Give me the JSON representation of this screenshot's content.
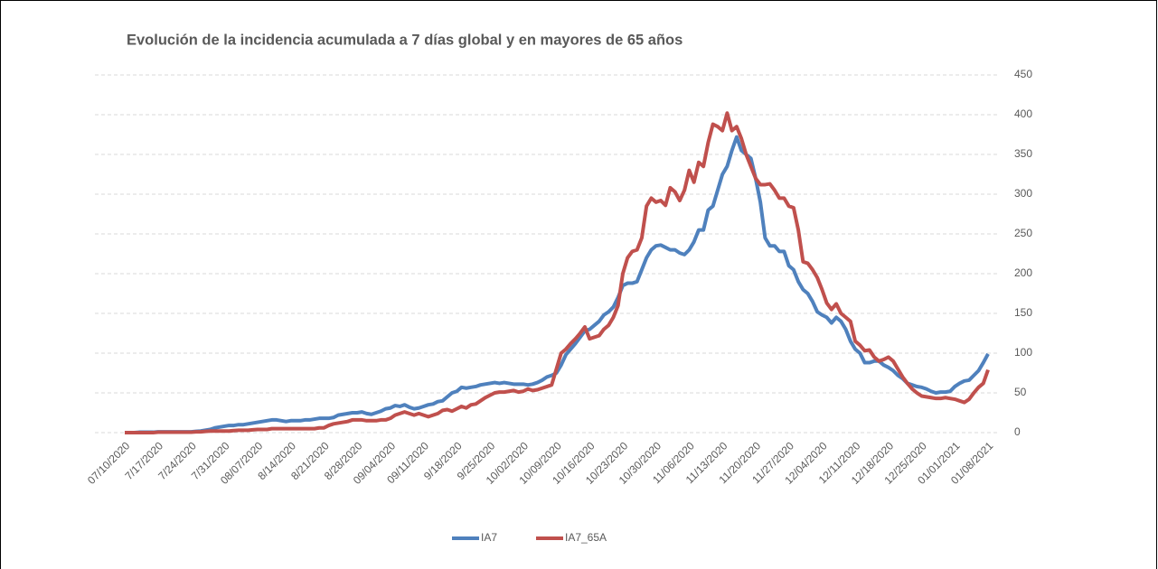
{
  "chart_data": {
    "type": "line",
    "title": "Evolución de la incidencia acumulada a 7 días global y en mayores de 65 años",
    "categories": [
      "07/10/2020",
      null,
      null,
      null,
      null,
      null,
      null,
      "7/17/2020",
      null,
      null,
      null,
      null,
      null,
      null,
      "7/24/2020",
      null,
      null,
      null,
      null,
      null,
      null,
      "7/31/2020",
      null,
      null,
      null,
      null,
      null,
      null,
      "08/07/2020",
      null,
      null,
      null,
      null,
      null,
      null,
      "8/14/2020",
      null,
      null,
      null,
      null,
      null,
      null,
      "8/21/2020",
      null,
      null,
      null,
      null,
      null,
      null,
      "8/28/2020",
      null,
      null,
      null,
      null,
      null,
      null,
      "09/04/2020",
      null,
      null,
      null,
      null,
      null,
      null,
      "09/11/2020",
      null,
      null,
      null,
      null,
      null,
      null,
      "9/18/2020",
      null,
      null,
      null,
      null,
      null,
      null,
      "9/25/2020",
      null,
      null,
      null,
      null,
      null,
      null,
      "10/02/2020",
      null,
      null,
      null,
      null,
      null,
      null,
      "10/09/2020",
      null,
      null,
      null,
      null,
      null,
      null,
      "10/16/2020",
      null,
      null,
      null,
      null,
      null,
      null,
      "10/23/2020",
      null,
      null,
      null,
      null,
      null,
      null,
      "10/30/2020",
      null,
      null,
      null,
      null,
      null,
      null,
      "11/06/2020",
      null,
      null,
      null,
      null,
      null,
      null,
      "11/13/2020",
      null,
      null,
      null,
      null,
      null,
      null,
      "11/20/2020",
      null,
      null,
      null,
      null,
      null,
      null,
      "11/27/2020",
      null,
      null,
      null,
      null,
      null,
      null,
      "12/04/2020",
      null,
      null,
      null,
      null,
      null,
      null,
      "12/11/2020",
      null,
      null,
      null,
      null,
      null,
      null,
      "12/18/2020",
      null,
      null,
      null,
      null,
      null,
      null,
      "12/25/2020",
      null,
      null,
      null,
      null,
      null,
      null,
      "01/01/2021",
      null,
      null,
      null,
      null,
      null,
      null,
      "01/08/2021"
    ],
    "series": [
      {
        "name": "IA7",
        "color": "#4F81BD",
        "values": [
          0,
          0,
          0,
          0.5,
          0.5,
          0.5,
          0.5,
          1,
          1,
          1,
          1,
          1,
          1,
          1,
          1,
          1.5,
          2,
          3,
          4,
          6,
          7,
          8,
          9,
          9,
          10,
          10,
          11,
          12,
          13,
          14,
          15,
          16,
          16,
          15,
          14,
          15,
          15,
          15,
          16,
          16,
          17,
          18,
          18,
          18,
          19,
          22,
          23,
          24,
          25,
          25,
          26,
          24,
          23,
          25,
          27,
          30,
          31,
          34,
          33,
          35,
          32,
          30,
          31,
          33,
          35,
          36,
          39,
          40,
          45,
          50,
          52,
          57,
          56,
          57,
          58,
          60,
          61,
          62,
          63,
          62,
          63,
          62,
          61,
          61,
          61,
          60,
          61,
          63,
          66,
          70,
          72,
          75,
          85,
          98,
          105,
          112,
          120,
          128,
          130,
          135,
          140,
          148,
          152,
          158,
          170,
          185,
          188,
          188,
          190,
          205,
          220,
          230,
          235,
          236,
          233,
          230,
          230,
          226,
          224,
          230,
          240,
          255,
          255,
          280,
          285,
          305,
          325,
          335,
          355,
          372,
          355,
          350,
          345,
          320,
          290,
          245,
          235,
          235,
          228,
          228,
          210,
          205,
          190,
          180,
          175,
          165,
          152,
          148,
          145,
          138,
          145,
          140,
          130,
          115,
          105,
          100,
          88,
          88,
          90,
          90,
          85,
          82,
          78,
          72,
          68,
          62,
          60,
          58,
          57,
          55,
          52,
          50,
          51,
          51,
          52,
          58,
          62,
          65,
          66,
          72,
          78,
          88,
          99
        ]
      },
      {
        "name": "IA7_65A",
        "color": "#C0504D",
        "values": [
          0,
          0,
          0,
          0,
          0,
          0,
          0,
          0.5,
          0.5,
          0.5,
          0.5,
          0.5,
          0.5,
          0.5,
          0.5,
          1,
          1,
          1.5,
          2,
          2,
          2,
          2,
          2,
          2.5,
          3,
          3,
          3,
          3.5,
          4,
          4,
          4,
          5,
          5,
          5,
          5,
          5,
          5,
          5,
          5,
          5,
          5,
          6,
          6,
          9,
          11,
          12,
          13,
          14,
          16,
          16,
          16,
          15,
          15,
          15,
          16,
          16,
          18,
          22,
          24,
          26,
          24,
          22,
          24,
          22,
          20,
          22,
          24,
          28,
          29,
          27,
          30,
          33,
          31,
          35,
          36,
          40,
          44,
          47,
          50,
          51,
          51,
          52,
          53,
          51,
          52,
          55,
          53,
          54,
          56,
          58,
          60,
          80,
          100,
          105,
          112,
          118,
          125,
          133,
          118,
          120,
          122,
          130,
          135,
          145,
          160,
          200,
          220,
          228,
          230,
          245,
          285,
          295,
          290,
          292,
          286,
          308,
          303,
          292,
          305,
          330,
          315,
          340,
          335,
          365,
          388,
          385,
          380,
          402,
          380,
          385,
          370,
          350,
          335,
          320,
          312,
          312,
          313,
          305,
          295,
          295,
          285,
          283,
          255,
          215,
          213,
          205,
          195,
          180,
          163,
          155,
          162,
          150,
          145,
          140,
          115,
          110,
          103,
          104,
          95,
          90,
          92,
          95,
          90,
          80,
          70,
          62,
          55,
          50,
          46,
          45,
          44,
          43,
          43,
          44,
          43,
          42,
          40,
          38,
          42,
          50,
          57,
          62,
          79
        ]
      }
    ],
    "ylim": [
      0,
      450
    ],
    "yticks": [
      0,
      50,
      100,
      150,
      200,
      250,
      300,
      350,
      400,
      450
    ],
    "grid": true,
    "legend": "bottom"
  }
}
